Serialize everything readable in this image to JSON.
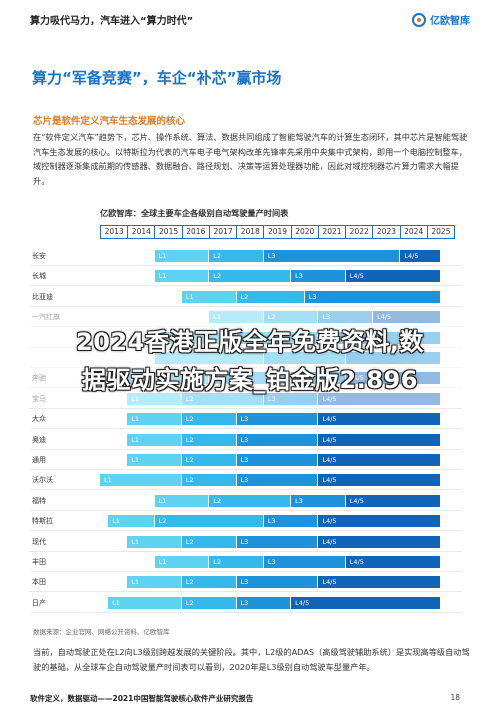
{
  "header": {
    "title": "算力吸代马力，汽车进入“算力时代”",
    "logo_text": "亿欧智库"
  },
  "headline": "算力“军备竞赛”，车企“补芯”赢市场",
  "section_title": "芯片是软件定义汽车生态发展的核心",
  "intro": "在“软件定义汽车”趋势下，芯片、操作系统、算法、数据共同组成了智能驾驶汽车的计算生态闭环，其中芯片是智能驾驶汽车生态发展的核心。以特斯拉为代表的汽车电子电气架构改革先锋率先采用中央集中式架构，即用一个电脑控制整车，域控制器逐渐集成前期的传感器、数据融合、路径规划、决策等运算处理器功能，因此对域控制器芯片算力需求大幅提升。",
  "chart_title": "亿欧智库：全球主要车企各级别自动驾驶量产时间表",
  "chart_data": {
    "type": "table",
    "title": "亿欧智库：全球主要车企各级别自动驾驶量产时间表",
    "years": [
      "2013",
      "2014",
      "2015",
      "2016",
      "2017",
      "2018",
      "2019",
      "2020",
      "2021",
      "2022",
      "2023",
      "2024",
      "2025"
    ],
    "rows": [
      {
        "brand": "长安",
        "segments": [
          {
            "level": "L1",
            "start": 2015,
            "end": 2017
          },
          {
            "level": "L2",
            "start": 2017,
            "end": 2019
          },
          {
            "level": "L3",
            "start": 2019,
            "end": 2024
          },
          {
            "level": "L4/5",
            "start": 2024,
            "end": 2025.5
          }
        ]
      },
      {
        "brand": "长城",
        "segments": [
          {
            "level": "L1",
            "start": 2015,
            "end": 2017
          },
          {
            "level": "L2",
            "start": 2017,
            "end": 2020
          },
          {
            "level": "L3",
            "start": 2020,
            "end": 2022
          },
          {
            "level": "L4/5",
            "start": 2022,
            "end": 2025.5
          }
        ]
      },
      {
        "brand": "比亚迪",
        "segments": [
          {
            "level": "L1",
            "start": 2016,
            "end": 2018
          },
          {
            "level": "L2",
            "start": 2018,
            "end": 2020.5
          },
          {
            "level": "L3",
            "start": 2020.5,
            "end": 2025.5
          }
        ]
      },
      {
        "brand": "一汽红旗",
        "segments": [
          {
            "level": "L1",
            "start": 2017,
            "end": 2019
          },
          {
            "level": "L2",
            "start": 2019,
            "end": 2021
          },
          {
            "level": "L3",
            "start": 2021,
            "end": 2023
          },
          {
            "level": "L4/5",
            "start": 2023,
            "end": 2025.5
          }
        ]
      },
      {
        "brand": "",
        "segments": [
          {
            "level": "",
            "start": 2015,
            "end": 2018
          },
          {
            "level": "",
            "start": 2018,
            "end": 2021
          },
          {
            "level": "",
            "start": 2021,
            "end": 2025.5
          }
        ]
      },
      {
        "brand": "",
        "segments": [
          {
            "level": "",
            "start": 2015,
            "end": 2019
          },
          {
            "level": "",
            "start": 2019,
            "end": 2022
          },
          {
            "level": "",
            "start": 2022,
            "end": 2025.5
          }
        ]
      },
      {
        "brand": "奔驰",
        "segments": [
          {
            "level": "L1",
            "start": 2013.3,
            "end": 2017
          },
          {
            "level": "L2",
            "start": 2017,
            "end": 2020
          },
          {
            "level": "L3",
            "start": 2020,
            "end": 2022
          },
          {
            "level": "L4/5",
            "start": 2022,
            "end": 2025.5
          }
        ]
      },
      {
        "brand": "宝马",
        "segments": [
          {
            "level": "L1",
            "start": 2014,
            "end": 2016
          },
          {
            "level": "L2",
            "start": 2016,
            "end": 2019
          },
          {
            "level": "L3",
            "start": 2019,
            "end": 2021
          },
          {
            "level": "L4/5",
            "start": 2021,
            "end": 2025.5
          }
        ]
      },
      {
        "brand": "大众",
        "segments": [
          {
            "level": "L1",
            "start": 2014,
            "end": 2016
          },
          {
            "level": "L2",
            "start": 2016,
            "end": 2018
          },
          {
            "level": "L3",
            "start": 2018,
            "end": 2021
          },
          {
            "level": "L4/5",
            "start": 2021,
            "end": 2025.5
          }
        ]
      },
      {
        "brand": "奥迪",
        "segments": [
          {
            "level": "L1",
            "start": 2014,
            "end": 2016
          },
          {
            "level": "L2",
            "start": 2016,
            "end": 2018
          },
          {
            "level": "L3",
            "start": 2018,
            "end": 2021
          },
          {
            "level": "L4/5",
            "start": 2021,
            "end": 2025.5
          }
        ]
      },
      {
        "brand": "通用",
        "segments": [
          {
            "level": "L1",
            "start": 2014,
            "end": 2016
          },
          {
            "level": "L2",
            "start": 2016,
            "end": 2018
          },
          {
            "level": "L3",
            "start": 2018,
            "end": 2021
          },
          {
            "level": "L4/5",
            "start": 2021,
            "end": 2025.5
          }
        ]
      },
      {
        "brand": "沃尔沃",
        "segments": [
          {
            "level": "L1",
            "start": 2013,
            "end": 2016
          },
          {
            "level": "L2",
            "start": 2016,
            "end": 2018
          },
          {
            "level": "L3",
            "start": 2018,
            "end": 2021
          },
          {
            "level": "L4/5",
            "start": 2021,
            "end": 2025.5
          }
        ]
      },
      {
        "brand": "福特",
        "segments": [
          {
            "level": "L1",
            "start": 2015,
            "end": 2017
          },
          {
            "level": "L2",
            "start": 2017,
            "end": 2020
          },
          {
            "level": "L3",
            "start": 2020,
            "end": 2022
          },
          {
            "level": "L4/5",
            "start": 2022,
            "end": 2025.5
          }
        ]
      },
      {
        "brand": "特斯拉",
        "segments": [
          {
            "level": "L1",
            "start": 2013.3,
            "end": 2015
          },
          {
            "level": "L2",
            "start": 2015,
            "end": 2019
          },
          {
            "level": "L3",
            "start": 2019,
            "end": 2021
          },
          {
            "level": "L4/5",
            "start": 2021,
            "end": 2025.5
          }
        ]
      },
      {
        "brand": "现代",
        "segments": [
          {
            "level": "L1",
            "start": 2014,
            "end": 2016
          },
          {
            "level": "L2",
            "start": 2016,
            "end": 2018
          },
          {
            "level": "L3",
            "start": 2018,
            "end": 2021
          },
          {
            "level": "L4/5",
            "start": 2021,
            "end": 2025.5
          }
        ]
      },
      {
        "brand": "丰田",
        "segments": [
          {
            "level": "L1",
            "start": 2015,
            "end": 2017
          },
          {
            "level": "L2",
            "start": 2017,
            "end": 2019
          },
          {
            "level": "L3",
            "start": 2019,
            "end": 2022
          },
          {
            "level": "L4/5",
            "start": 2022,
            "end": 2025.5
          }
        ]
      },
      {
        "brand": "本田",
        "segments": [
          {
            "level": "L1",
            "start": 2014,
            "end": 2016
          },
          {
            "level": "L2",
            "start": 2016,
            "end": 2018
          },
          {
            "level": "L3",
            "start": 2018,
            "end": 2021
          },
          {
            "level": "L4/5",
            "start": 2021,
            "end": 2025.5
          }
        ]
      },
      {
        "brand": "日产",
        "segments": [
          {
            "level": "L1",
            "start": 2013.3,
            "end": 2016
          },
          {
            "level": "L2",
            "start": 2016,
            "end": 2018
          },
          {
            "level": "L3",
            "start": 2018,
            "end": 2020
          },
          {
            "level": "L4/5",
            "start": 2020,
            "end": 2025.5
          }
        ]
      }
    ]
  },
  "source": "数据来源：企业官网、网络公开资料、亿欧智库",
  "footnote": "当前，自动驾驶正处在L2向L3级别跨越发展的关键阶段。其中，L2级的ADAS（高级驾驶辅助系统）是实现高等级自动驾驶的基础，从全球车企自动驾驶量产时间表可以看到，2020年是L3级别自动驾驶车型量产年。",
  "footer": {
    "left": "软件定义，数据驱动——2021中国智能驾驶核心软件产业研究报告",
    "page": "18"
  },
  "watermark": {
    "line1": "2024香港正版全年免费资料,数",
    "line2": "据驱动实施方案_铂金版2.896"
  },
  "colors": {
    "accent": "#1a73c8",
    "section": "#e07a2a",
    "L1": "#5ed3f1",
    "L2": "#35b8ea",
    "L3": "#1e92da",
    "L4/5": "#1065b8"
  }
}
